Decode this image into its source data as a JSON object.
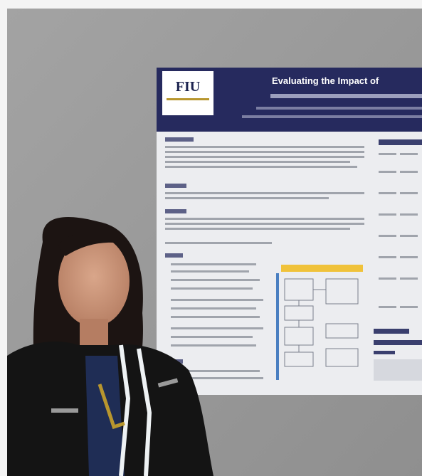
{
  "poster": {
    "logo": "FIU",
    "title": "Evaluating the Impact of"
  }
}
